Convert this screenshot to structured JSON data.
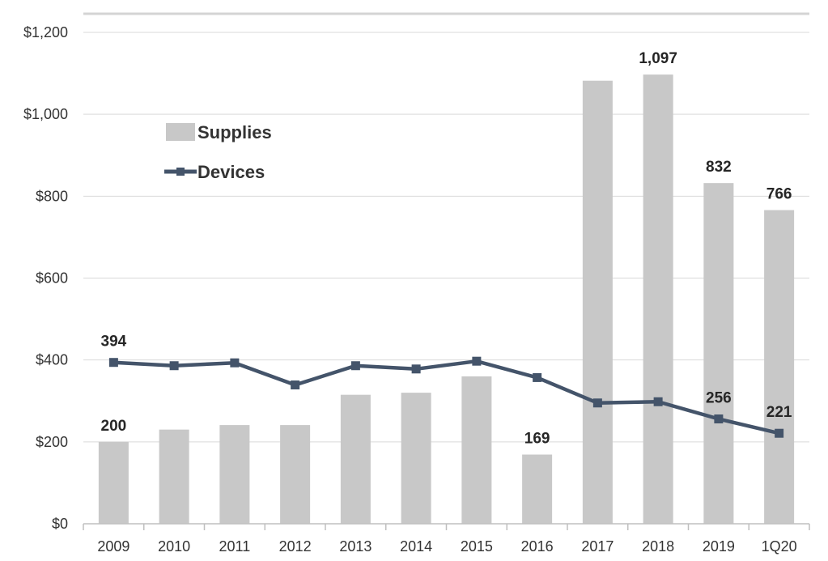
{
  "chart_data": {
    "type": "bar",
    "title": "",
    "xlabel": "",
    "ylabel": "",
    "ylim": [
      0,
      1200
    ],
    "y_ticks": [
      "$0",
      "$200",
      "$400",
      "$600",
      "$800",
      "$1,000",
      "$1,200"
    ],
    "y_tick_values": [
      0,
      200,
      400,
      600,
      800,
      1000,
      1200
    ],
    "categories": [
      "2009",
      "2010",
      "2011",
      "2012",
      "2013",
      "2014",
      "2015",
      "2016",
      "2017",
      "2018",
      "2019",
      "1Q20"
    ],
    "grid": true,
    "legend_position": "top-left",
    "series": [
      {
        "name": "Supplies",
        "type": "bar",
        "color": "#c8c8c8",
        "values": [
          200,
          230,
          241,
          241,
          315,
          320,
          360,
          169,
          1082,
          1097,
          832,
          766
        ]
      },
      {
        "name": "Devices",
        "type": "line",
        "color": "#44546a",
        "values": [
          394,
          386,
          393,
          339,
          386,
          378,
          397,
          357,
          295,
          298,
          256,
          221
        ]
      }
    ],
    "data_labels": [
      {
        "series": "Supplies",
        "index": 0,
        "text": "200"
      },
      {
        "series": "Supplies",
        "index": 7,
        "text": "169"
      },
      {
        "series": "Supplies",
        "index": 9,
        "text": "1,097"
      },
      {
        "series": "Supplies",
        "index": 10,
        "text": "832"
      },
      {
        "series": "Supplies",
        "index": 11,
        "text": "766"
      },
      {
        "series": "Devices",
        "index": 0,
        "text": "394"
      },
      {
        "series": "Devices",
        "index": 10,
        "text": "256"
      },
      {
        "series": "Devices",
        "index": 11,
        "text": "221"
      }
    ]
  }
}
